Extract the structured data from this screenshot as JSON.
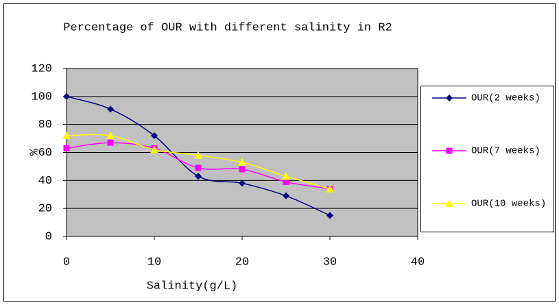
{
  "chart_data": {
    "type": "line",
    "title": "Percentage of OUR with different salinity in R2",
    "xlabel": "Salinity(g/L)",
    "ylabel": "%",
    "x": [
      0,
      5,
      10,
      15,
      20,
      25,
      30
    ],
    "series": [
      {
        "name": "OUR(2 weeks)",
        "color": "#000080",
        "marker": "diamond",
        "values": [
          100,
          91,
          72,
          43,
          38,
          29,
          15
        ]
      },
      {
        "name": "OUR(7 weeks)",
        "color": "#ff00ff",
        "marker": "square",
        "values": [
          63,
          67,
          63,
          49,
          48,
          39,
          34
        ]
      },
      {
        "name": "OUR(10 weeks)",
        "color": "#ffff00",
        "marker": "triangle",
        "values": [
          72,
          72,
          62,
          58,
          53,
          43,
          34
        ]
      }
    ],
    "xlim": [
      0,
      40
    ],
    "xticks": [
      0,
      10,
      20,
      30,
      40
    ],
    "ylim": [
      0,
      120
    ],
    "yticks": [
      0,
      20,
      40,
      60,
      80,
      100,
      120
    ],
    "grid": true,
    "smooth": true,
    "legend": "right"
  }
}
